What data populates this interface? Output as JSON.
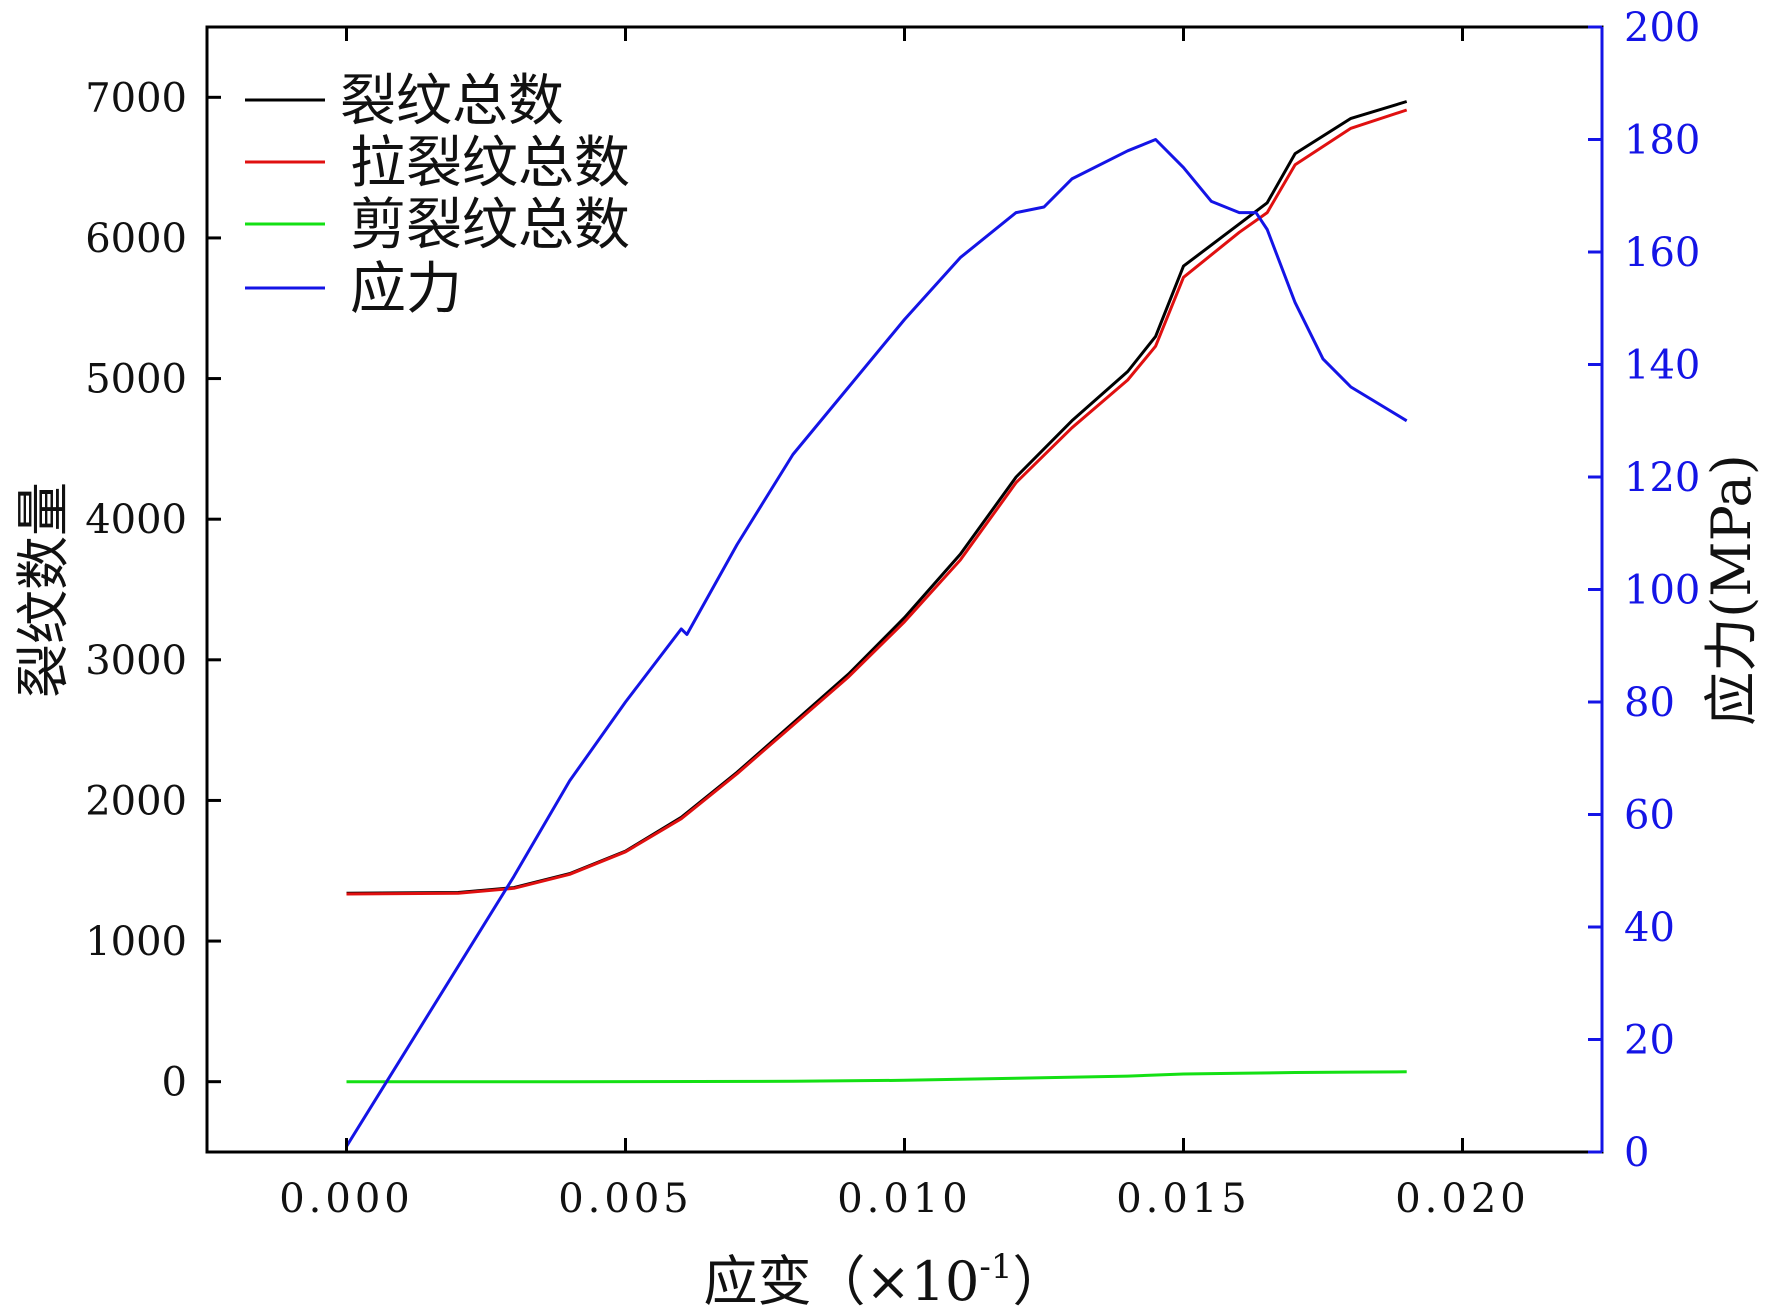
{
  "chart_data": {
    "type": "line",
    "xlabel": "应变（×10",
    "xlabel_exp": "-1",
    "xlabel_close": "）",
    "ylabel_left": "裂纹数量",
    "ylabel_right": "应力(MPa)",
    "xlim": [
      -0.0025,
      0.0225
    ],
    "ylim_left": [
      -500,
      7500
    ],
    "ylim_right": [
      0,
      200
    ],
    "x_ticks": [
      "0.000",
      "0.005",
      "0.010",
      "0.015",
      "0.020"
    ],
    "y_left_ticks": [
      "0",
      "1000",
      "2000",
      "3000",
      "4000",
      "5000",
      "6000",
      "7000"
    ],
    "y_right_ticks": [
      "0",
      "20",
      "40",
      "60",
      "80",
      "100",
      "120",
      "140",
      "160",
      "180",
      "200"
    ],
    "grid": false,
    "legend_position": "top-left",
    "series": [
      {
        "name": "裂纹总数",
        "axis": "left",
        "color": "#000000",
        "x": [
          0.0,
          0.002,
          0.003,
          0.004,
          0.005,
          0.006,
          0.007,
          0.008,
          0.009,
          0.01,
          0.011,
          0.012,
          0.013,
          0.014,
          0.0145,
          0.015,
          0.016,
          0.0165,
          0.017,
          0.018,
          0.019
        ],
        "y": [
          1340,
          1345,
          1380,
          1480,
          1640,
          1880,
          2200,
          2550,
          2900,
          3300,
          3750,
          4300,
          4700,
          5050,
          5300,
          5800,
          6100,
          6250,
          6600,
          6850,
          6970
        ]
      },
      {
        "name": "拉裂纹总数",
        "axis": "left",
        "color": "#e01010",
        "x": [
          0.0,
          0.002,
          0.003,
          0.004,
          0.005,
          0.006,
          0.007,
          0.008,
          0.009,
          0.01,
          0.011,
          0.012,
          0.013,
          0.014,
          0.0145,
          0.015,
          0.016,
          0.0165,
          0.017,
          0.018,
          0.019
        ],
        "y": [
          1335,
          1340,
          1375,
          1475,
          1635,
          1870,
          2190,
          2535,
          2880,
          3270,
          3710,
          4260,
          4650,
          4990,
          5230,
          5720,
          6040,
          6180,
          6520,
          6780,
          6910
        ]
      },
      {
        "name": "剪裂纹总数",
        "axis": "left",
        "color": "#14e014",
        "x": [
          0.0,
          0.004,
          0.008,
          0.01,
          0.012,
          0.014,
          0.015,
          0.016,
          0.017,
          0.018,
          0.019
        ],
        "y": [
          0,
          0,
          3,
          10,
          25,
          40,
          55,
          60,
          65,
          68,
          70
        ]
      },
      {
        "name": "应力",
        "axis": "right",
        "color": "#1414e6",
        "x": [
          0.0,
          0.001,
          0.002,
          0.003,
          0.004,
          0.005,
          0.006,
          0.0061,
          0.007,
          0.008,
          0.009,
          0.01,
          0.011,
          0.012,
          0.0125,
          0.013,
          0.014,
          0.0145,
          0.015,
          0.0155,
          0.016,
          0.0163,
          0.0165,
          0.017,
          0.0175,
          0.018,
          0.0185,
          0.019
        ],
        "y": [
          1,
          17,
          33,
          49,
          66,
          80,
          93,
          92,
          108,
          124,
          136,
          148,
          159,
          167,
          168,
          173,
          178,
          180,
          175,
          169,
          167,
          167,
          164,
          151,
          141,
          136,
          133,
          130
        ]
      }
    ]
  }
}
